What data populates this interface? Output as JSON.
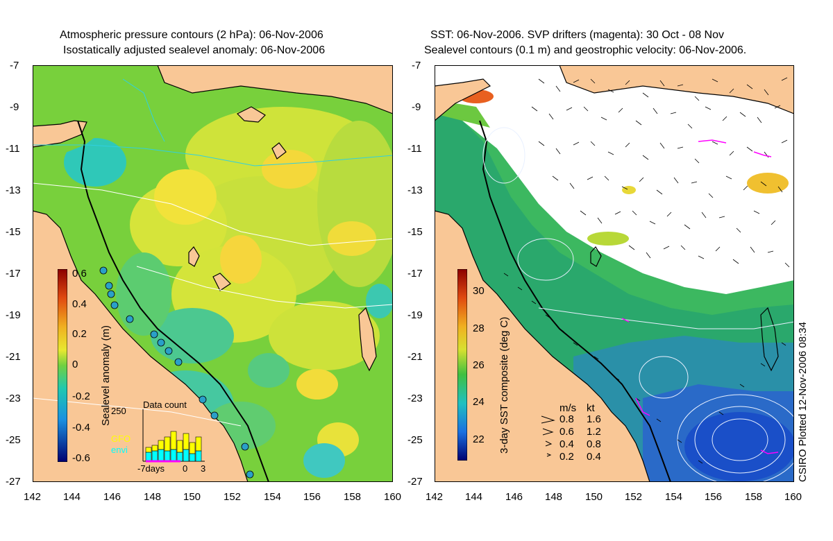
{
  "left_panel": {
    "title_line1": "Atmospheric pressure contours (2 hPa): 06-Nov-2006",
    "title_line2": "Isostatically adjusted sealevel anomaly: 06-Nov-2006",
    "colorbar_label": "Sealevel anomaly (m)",
    "colorbar_ticks": [
      "0.6",
      "0.4",
      "0.2",
      "0",
      "-0.2",
      "-0.4",
      "-0.6"
    ],
    "data_count": {
      "title": "Data count",
      "max_label": "250",
      "legend": [
        "GFO",
        "envi"
      ],
      "legend_colors": [
        "#ffff00",
        "#00ffff"
      ],
      "xticks": [
        "-7days",
        "0",
        "3"
      ]
    }
  },
  "right_panel": {
    "title_line1": "SST: 06-Nov-2006. SVP drifters (magenta): 30 Oct - 08 Nov",
    "title_line2": "Sealevel contours (0.1 m) and geostrophic velocity: 06-Nov-2006.",
    "colorbar_label": "3-day SST composite (deg C)",
    "colorbar_ticks": [
      "30",
      "28",
      "26",
      "24",
      "22"
    ],
    "velocity_legend": {
      "header": [
        "m/s",
        "kt"
      ],
      "rows": [
        [
          "0.8",
          "1.6"
        ],
        [
          "0.6",
          "1.2"
        ],
        [
          "0.4",
          "0.8"
        ],
        [
          "0.2",
          "0.4"
        ]
      ]
    },
    "credit": "CSIRO Plotted 12-Nov-2006 08:34"
  },
  "axes": {
    "y_ticks": [
      "-7",
      "-9",
      "-11",
      "-13",
      "-15",
      "-17",
      "-19",
      "-21",
      "-23",
      "-25",
      "-27"
    ],
    "x_ticks": [
      "142",
      "144",
      "146",
      "148",
      "150",
      "152",
      "154",
      "156",
      "158",
      "160"
    ]
  },
  "colors": {
    "land": "#f9c796",
    "ocean_green": "#7ad43b",
    "ocean_yellow": "#d8e638",
    "cyan_anomaly": "#2fc8b8",
    "sst_blue": "#1a4fc8",
    "drifter": "#ff00ff"
  }
}
